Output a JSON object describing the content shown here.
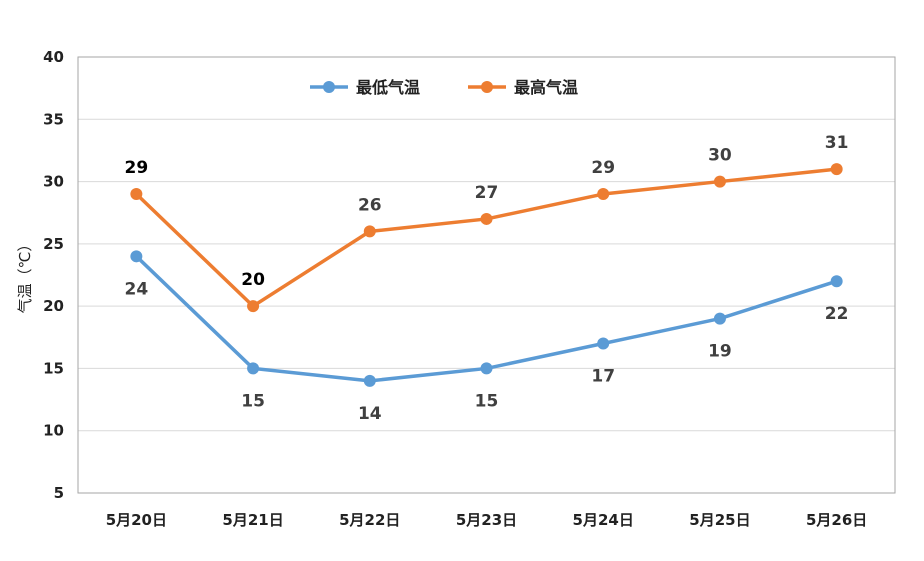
{
  "chart_data": {
    "type": "line",
    "categories": [
      "5月20日",
      "5月21日",
      "5月22日",
      "5月23日",
      "5月24日",
      "5月25日",
      "5月26日"
    ],
    "series": [
      {
        "name": "最低气温",
        "color": "#5b9bd5",
        "values": [
          24,
          15,
          14,
          15,
          17,
          19,
          22
        ],
        "label_position": "below"
      },
      {
        "name": "最高气温",
        "color": "#ed7d31",
        "values": [
          29,
          20,
          26,
          27,
          29,
          30,
          31
        ],
        "label_position": "above"
      }
    ],
    "ylabel": "气温（℃）",
    "ylim": [
      5,
      40
    ],
    "yticks": [
      5,
      10,
      15,
      20,
      25,
      30,
      35,
      40
    ],
    "grid": true,
    "legend_position": "top-center"
  }
}
